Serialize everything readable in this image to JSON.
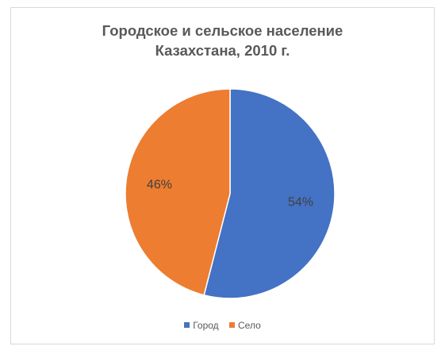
{
  "chart_data": {
    "type": "pie",
    "title_lines": [
      "Городское и сельское население",
      "Казахстана, 2010 г."
    ],
    "categories": [
      "Город",
      "Село"
    ],
    "values": [
      54,
      46
    ],
    "labels": [
      "54%",
      "46%"
    ],
    "colors": [
      "#4472c4",
      "#ed7d31"
    ],
    "legend_position": "bottom"
  }
}
